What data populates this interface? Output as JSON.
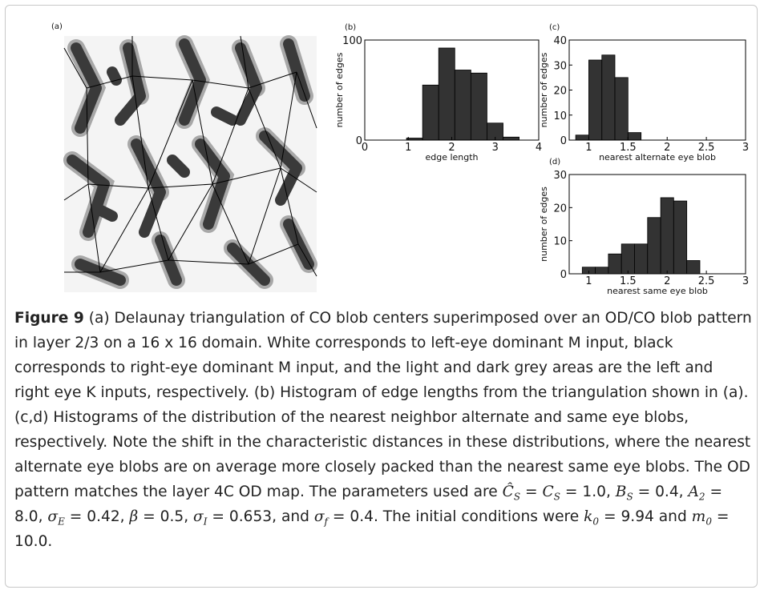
{
  "panel_a": {
    "label": "(a)"
  },
  "chart_data": [
    {
      "type": "histogram",
      "panel_label": "(b)",
      "xlabel": "edge length",
      "ylabel": "number of edges",
      "bins": [
        0.96,
        1.33,
        1.7,
        2.07,
        2.44,
        2.81,
        3.18,
        3.55
      ],
      "values": [
        2,
        55,
        92,
        70,
        67,
        17,
        3
      ],
      "color": "#333333",
      "xlim": [
        0,
        4
      ],
      "ylim": [
        0,
        100
      ],
      "xticks": [
        0,
        1,
        2,
        3,
        4
      ],
      "yticks": [
        0,
        100
      ]
    },
    {
      "type": "histogram",
      "panel_label": "(c)",
      "xlabel": "nearest alternate eye blob",
      "ylabel": "number of edges",
      "bins": [
        0.833,
        1,
        1.167,
        1.333,
        1.5,
        1.667
      ],
      "values": [
        2,
        32,
        34,
        25,
        3
      ],
      "color": "#333333",
      "xlim": [
        0.75,
        3
      ],
      "ylim": [
        0,
        40
      ],
      "xticks": [
        1,
        1.5,
        2,
        2.5,
        3
      ],
      "yticks": [
        0,
        10,
        20,
        30,
        40
      ]
    },
    {
      "type": "histogram",
      "panel_label": "(d)",
      "xlabel": "nearest same eye blob",
      "ylabel": "number of edges",
      "bins": [
        0.917,
        1.083,
        1.25,
        1.417,
        1.583,
        1.75,
        1.917,
        2.083,
        2.25,
        2.417
      ],
      "values": [
        2,
        2,
        6,
        9,
        9,
        17,
        23,
        22,
        4
      ],
      "color": "#333333",
      "xlim": [
        0.75,
        3
      ],
      "ylim": [
        0,
        30
      ],
      "xticks": [
        1,
        1.5,
        2,
        2.5,
        3
      ],
      "yticks": [
        0,
        10,
        20,
        30
      ]
    }
  ],
  "caption": {
    "label": "Figure 9",
    "parts": [
      {
        "text": " (a) Delaunay triangulation of CO blob centers superimposed over an OD/CO blob pattern in layer 2/3 on a 16 x 16 domain. White corresponds to left-eye dominant M input, black corresponds to right-eye dominant M input, and the light and dark grey areas are the left and right eye K inputs, respectively. (b) Histogram of edge lengths from the triangulation shown in (a). (c,d) Histograms of the distribution of the nearest neighbor alternate and same eye blobs, respectively. Note the shift in the characteristic distances in these distributions, where the nearest alternate eye blobs are on average more closely packed than the nearest same eye blobs. The OD pattern matches the layer 4C OD map. The parameters used are "
      },
      {
        "math": "Ĉ"
      },
      {
        "sub": "S"
      },
      {
        "text": " = "
      },
      {
        "math": "C"
      },
      {
        "sub": "S"
      },
      {
        "text": " = 1.0, "
      },
      {
        "math": "B"
      },
      {
        "sub": "S"
      },
      {
        "text": " = 0.4, "
      },
      {
        "math": "A"
      },
      {
        "sub": "2"
      },
      {
        "text": " = 8.0, "
      },
      {
        "math": "σ"
      },
      {
        "sub": "E"
      },
      {
        "text": " = 0.42, "
      },
      {
        "math": "β"
      },
      {
        "text": " = 0.5, "
      },
      {
        "math": "σ"
      },
      {
        "sub": "I"
      },
      {
        "text": " = 0.653, and "
      },
      {
        "math": "σ"
      },
      {
        "sub": "f"
      },
      {
        "text": " = 0.4. The initial conditions were "
      },
      {
        "math": "k"
      },
      {
        "sub": "0"
      },
      {
        "text": " = 9.94 and "
      },
      {
        "math": "m"
      },
      {
        "sub": "0"
      },
      {
        "text": " = 10.0."
      }
    ]
  }
}
